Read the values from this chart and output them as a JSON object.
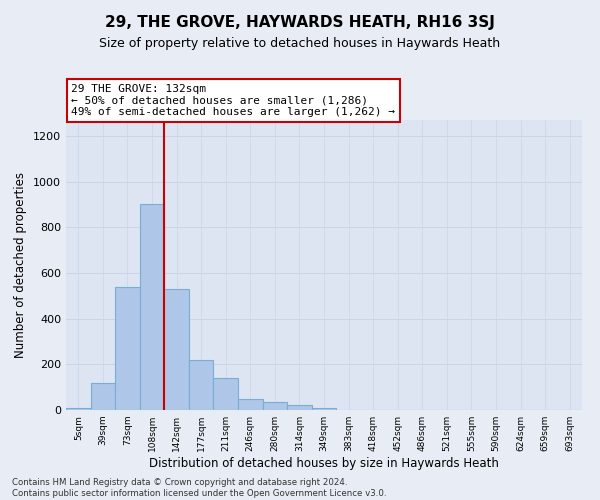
{
  "title": "29, THE GROVE, HAYWARDS HEATH, RH16 3SJ",
  "subtitle": "Size of property relative to detached houses in Haywards Heath",
  "xlabel": "Distribution of detached houses by size in Haywards Heath",
  "ylabel": "Number of detached properties",
  "bar_values": [
    10,
    120,
    540,
    900,
    530,
    220,
    140,
    50,
    35,
    20,
    10,
    0,
    0,
    0,
    0,
    0,
    0,
    0,
    0,
    0,
    0
  ],
  "bar_labels": [
    "5sqm",
    "39sqm",
    "73sqm",
    "108sqm",
    "142sqm",
    "177sqm",
    "211sqm",
    "246sqm",
    "280sqm",
    "314sqm",
    "349sqm",
    "383sqm",
    "418sqm",
    "452sqm",
    "486sqm",
    "521sqm",
    "555sqm",
    "590sqm",
    "624sqm",
    "659sqm",
    "693sqm"
  ],
  "bar_color": "#aec6e8",
  "bar_edgecolor": "#7aadd4",
  "bar_linewidth": 0.8,
  "vline_x": 3.5,
  "vline_color": "#cc0000",
  "vline_lw": 1.5,
  "annotation_text": "29 THE GROVE: 132sqm\n← 50% of detached houses are smaller (1,286)\n49% of semi-detached houses are larger (1,262) →",
  "annotation_box_color": "#ffffff",
  "annotation_box_edgecolor": "#cc0000",
  "annotation_fontsize": 8.0,
  "ylim": [
    0,
    1270
  ],
  "yticks": [
    0,
    200,
    400,
    600,
    800,
    1000,
    1200
  ],
  "grid_color": "#c8d4e8",
  "bg_color": "#e8edf5",
  "plot_bg_color": "#dde5f2",
  "title_fontsize": 11,
  "subtitle_fontsize": 9,
  "xlabel_fontsize": 8.5,
  "ylabel_fontsize": 8.5,
  "footer_text": "Contains HM Land Registry data © Crown copyright and database right 2024.\nContains public sector information licensed under the Open Government Licence v3.0."
}
